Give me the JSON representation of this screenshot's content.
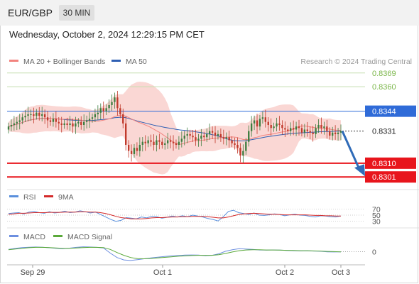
{
  "header": {
    "pair": "EUR/GBP",
    "timeframe": "30 MIN",
    "datetime": "Wednesday, October 2, 2024 12:29:15 PM CET"
  },
  "colors": {
    "ma20": "#f2837e",
    "ma50": "#2f5fb3",
    "band_fill": "#f8c9c6",
    "target": "#7ab648",
    "current": "#2f6bd8",
    "support": "#e8151c",
    "rsi": "#5a8fdc",
    "rsi_ma": "#d42a2a",
    "macd": "#6d8fe0",
    "macd_signal": "#5aa93a",
    "candle_up": "#3c7d3f",
    "candle_down": "#c0392b",
    "arrow": "#2f6bb8"
  },
  "chart_data": [
    {
      "type": "candlestick",
      "title": "EUR/GBP 30 MIN",
      "legend": [
        {
          "label": "MA 20 + Bollinger Bands",
          "color": "#f2837e"
        },
        {
          "label": "MA 50",
          "color": "#2f5fb3"
        }
      ],
      "legend_position": "top-left",
      "credit": "Research © 2024 Trading Central",
      "x_ticks": [
        "Sep 29",
        "Oct 1",
        "Oct 2",
        "Oct 3"
      ],
      "levels": [
        {
          "value": 0.8369,
          "label": "0.8369",
          "kind": "target"
        },
        {
          "value": 0.836,
          "label": "0.8360",
          "kind": "target"
        },
        {
          "value": 0.8344,
          "label": "0.8344",
          "kind": "pivot"
        },
        {
          "value": 0.8331,
          "label": "0.8331",
          "kind": "current"
        },
        {
          "value": 0.831,
          "label": "0.8310",
          "kind": "support"
        },
        {
          "value": 0.8301,
          "label": "0.8301",
          "kind": "support"
        }
      ],
      "close": [
        0.8334,
        0.8335,
        0.8336,
        0.8337,
        0.8338,
        0.834,
        0.8341,
        0.8342,
        0.8342,
        0.8341,
        0.8343,
        0.8341,
        0.8342,
        0.834,
        0.8338,
        0.8337,
        0.8339,
        0.8337,
        0.8336,
        0.8335,
        0.8336,
        0.8335,
        0.8336,
        0.8334,
        0.8336,
        0.8337,
        0.8335,
        0.8337,
        0.8338,
        0.8339,
        0.834,
        0.8342,
        0.8343,
        0.8346,
        0.8344,
        0.8346,
        0.8348,
        0.835,
        0.8353,
        0.8346,
        0.8342,
        0.8336,
        0.8322,
        0.8318,
        0.8316,
        0.832,
        0.8318,
        0.8322,
        0.8324,
        0.8323,
        0.8325,
        0.8324,
        0.8322,
        0.8325,
        0.8324,
        0.8322,
        0.8323,
        0.8325,
        0.8324,
        0.8323,
        0.8322,
        0.8324,
        0.8326,
        0.8328,
        0.8329,
        0.8328,
        0.8327,
        0.8325,
        0.8326,
        0.8328,
        0.8327,
        0.8329,
        0.8331,
        0.833,
        0.8328,
        0.8329,
        0.8327,
        0.8326,
        0.8327,
        0.8325,
        0.8323,
        0.8322,
        0.832,
        0.8315,
        0.8318,
        0.8324,
        0.8331,
        0.8336,
        0.8338,
        0.8334,
        0.8339,
        0.834,
        0.8337,
        0.8335,
        0.8333,
        0.8334,
        0.8336,
        0.8335,
        0.8333,
        0.8332,
        0.8331,
        0.8333,
        0.8332,
        0.8334,
        0.8333,
        0.833,
        0.8332,
        0.8331,
        0.833,
        0.8329,
        0.8333,
        0.8335,
        0.8333,
        0.8334,
        0.8331,
        0.8328,
        0.833,
        0.8329,
        0.833,
        0.8331
      ],
      "ylim": [
        0.8296,
        0.8374
      ]
    },
    {
      "type": "line",
      "title": "",
      "legend": [
        {
          "label": "RSI",
          "color": "#5a8fdc"
        },
        {
          "label": "9MA",
          "color": "#d42a2a"
        }
      ],
      "y_ticks": [
        "70",
        "50",
        "30"
      ],
      "ylim": [
        20,
        80
      ],
      "series": [
        {
          "name": "RSI",
          "values": [
            55,
            57,
            58,
            54,
            60,
            62,
            58,
            56,
            61,
            57,
            59,
            63,
            58,
            60,
            64,
            61,
            57,
            60,
            52,
            44,
            36,
            30,
            33,
            42,
            40,
            38,
            44,
            41,
            46,
            45,
            40,
            43,
            47,
            44,
            48,
            45,
            50,
            47,
            44,
            39,
            36,
            31,
            45,
            62,
            66,
            58,
            55,
            52,
            57,
            50,
            49,
            51,
            54,
            52,
            48,
            51,
            53,
            50,
            49,
            46,
            44,
            48,
            47,
            45,
            44,
            47
          ]
        },
        {
          "name": "9MA",
          "values": [
            53,
            54,
            56,
            56,
            57,
            58,
            58,
            58,
            59,
            59,
            59,
            60,
            60,
            60,
            61,
            61,
            60,
            60,
            58,
            55,
            51,
            46,
            42,
            40,
            38,
            38,
            38,
            39,
            41,
            42,
            42,
            43,
            44,
            44,
            45,
            45,
            46,
            46,
            46,
            45,
            43,
            41,
            41,
            44,
            48,
            52,
            54,
            55,
            56,
            55,
            54,
            53,
            53,
            52,
            51,
            51,
            51,
            51,
            51,
            50,
            49,
            49,
            48,
            48,
            47,
            47
          ]
        }
      ]
    },
    {
      "type": "line",
      "title": "",
      "legend": [
        {
          "label": "MACD",
          "color": "#6d8fe0"
        },
        {
          "label": "MACD Signal",
          "color": "#5aa93a"
        }
      ],
      "y_ticks": [
        "0"
      ],
      "ylim": [
        -6,
        4
      ],
      "series": [
        {
          "name": "MACD",
          "values": [
            1.2,
            1.8,
            2.2,
            2.4,
            2.5,
            2.4,
            2.1,
            1.8,
            1.6,
            1.9,
            2.3,
            2.6,
            2.5,
            2.3,
            2.0,
            -0.8,
            -3.2,
            -4.5,
            -4.8,
            -4.4,
            -3.9,
            -3.4,
            -3.0,
            -2.6,
            -2.3,
            -2.1,
            -1.9,
            -1.8,
            -1.9,
            -2.2,
            -2.0,
            -1.2,
            0.2,
            1.0,
            1.6,
            1.4,
            1.2,
            0.9,
            0.8,
            0.9,
            0.8,
            0.6,
            0.5,
            0.4,
            0.5,
            0.3,
            0.2,
            -0.1,
            -0.2,
            -0.1
          ]
        },
        {
          "name": "MACD Signal",
          "values": [
            1.0,
            1.4,
            1.8,
            2.1,
            2.3,
            2.3,
            2.2,
            2.0,
            1.8,
            1.8,
            2.0,
            2.2,
            2.3,
            2.3,
            2.2,
            1.2,
            -0.5,
            -2.0,
            -3.2,
            -3.8,
            -3.9,
            -3.7,
            -3.4,
            -3.1,
            -2.8,
            -2.5,
            -2.3,
            -2.1,
            -2.0,
            -2.0,
            -2.0,
            -1.7,
            -1.0,
            -0.2,
            0.5,
            0.9,
            1.0,
            1.0,
            0.9,
            0.9,
            0.8,
            0.7,
            0.6,
            0.5,
            0.5,
            0.4,
            0.3,
            0.1,
            -0.0,
            -0.1
          ]
        }
      ]
    }
  ]
}
